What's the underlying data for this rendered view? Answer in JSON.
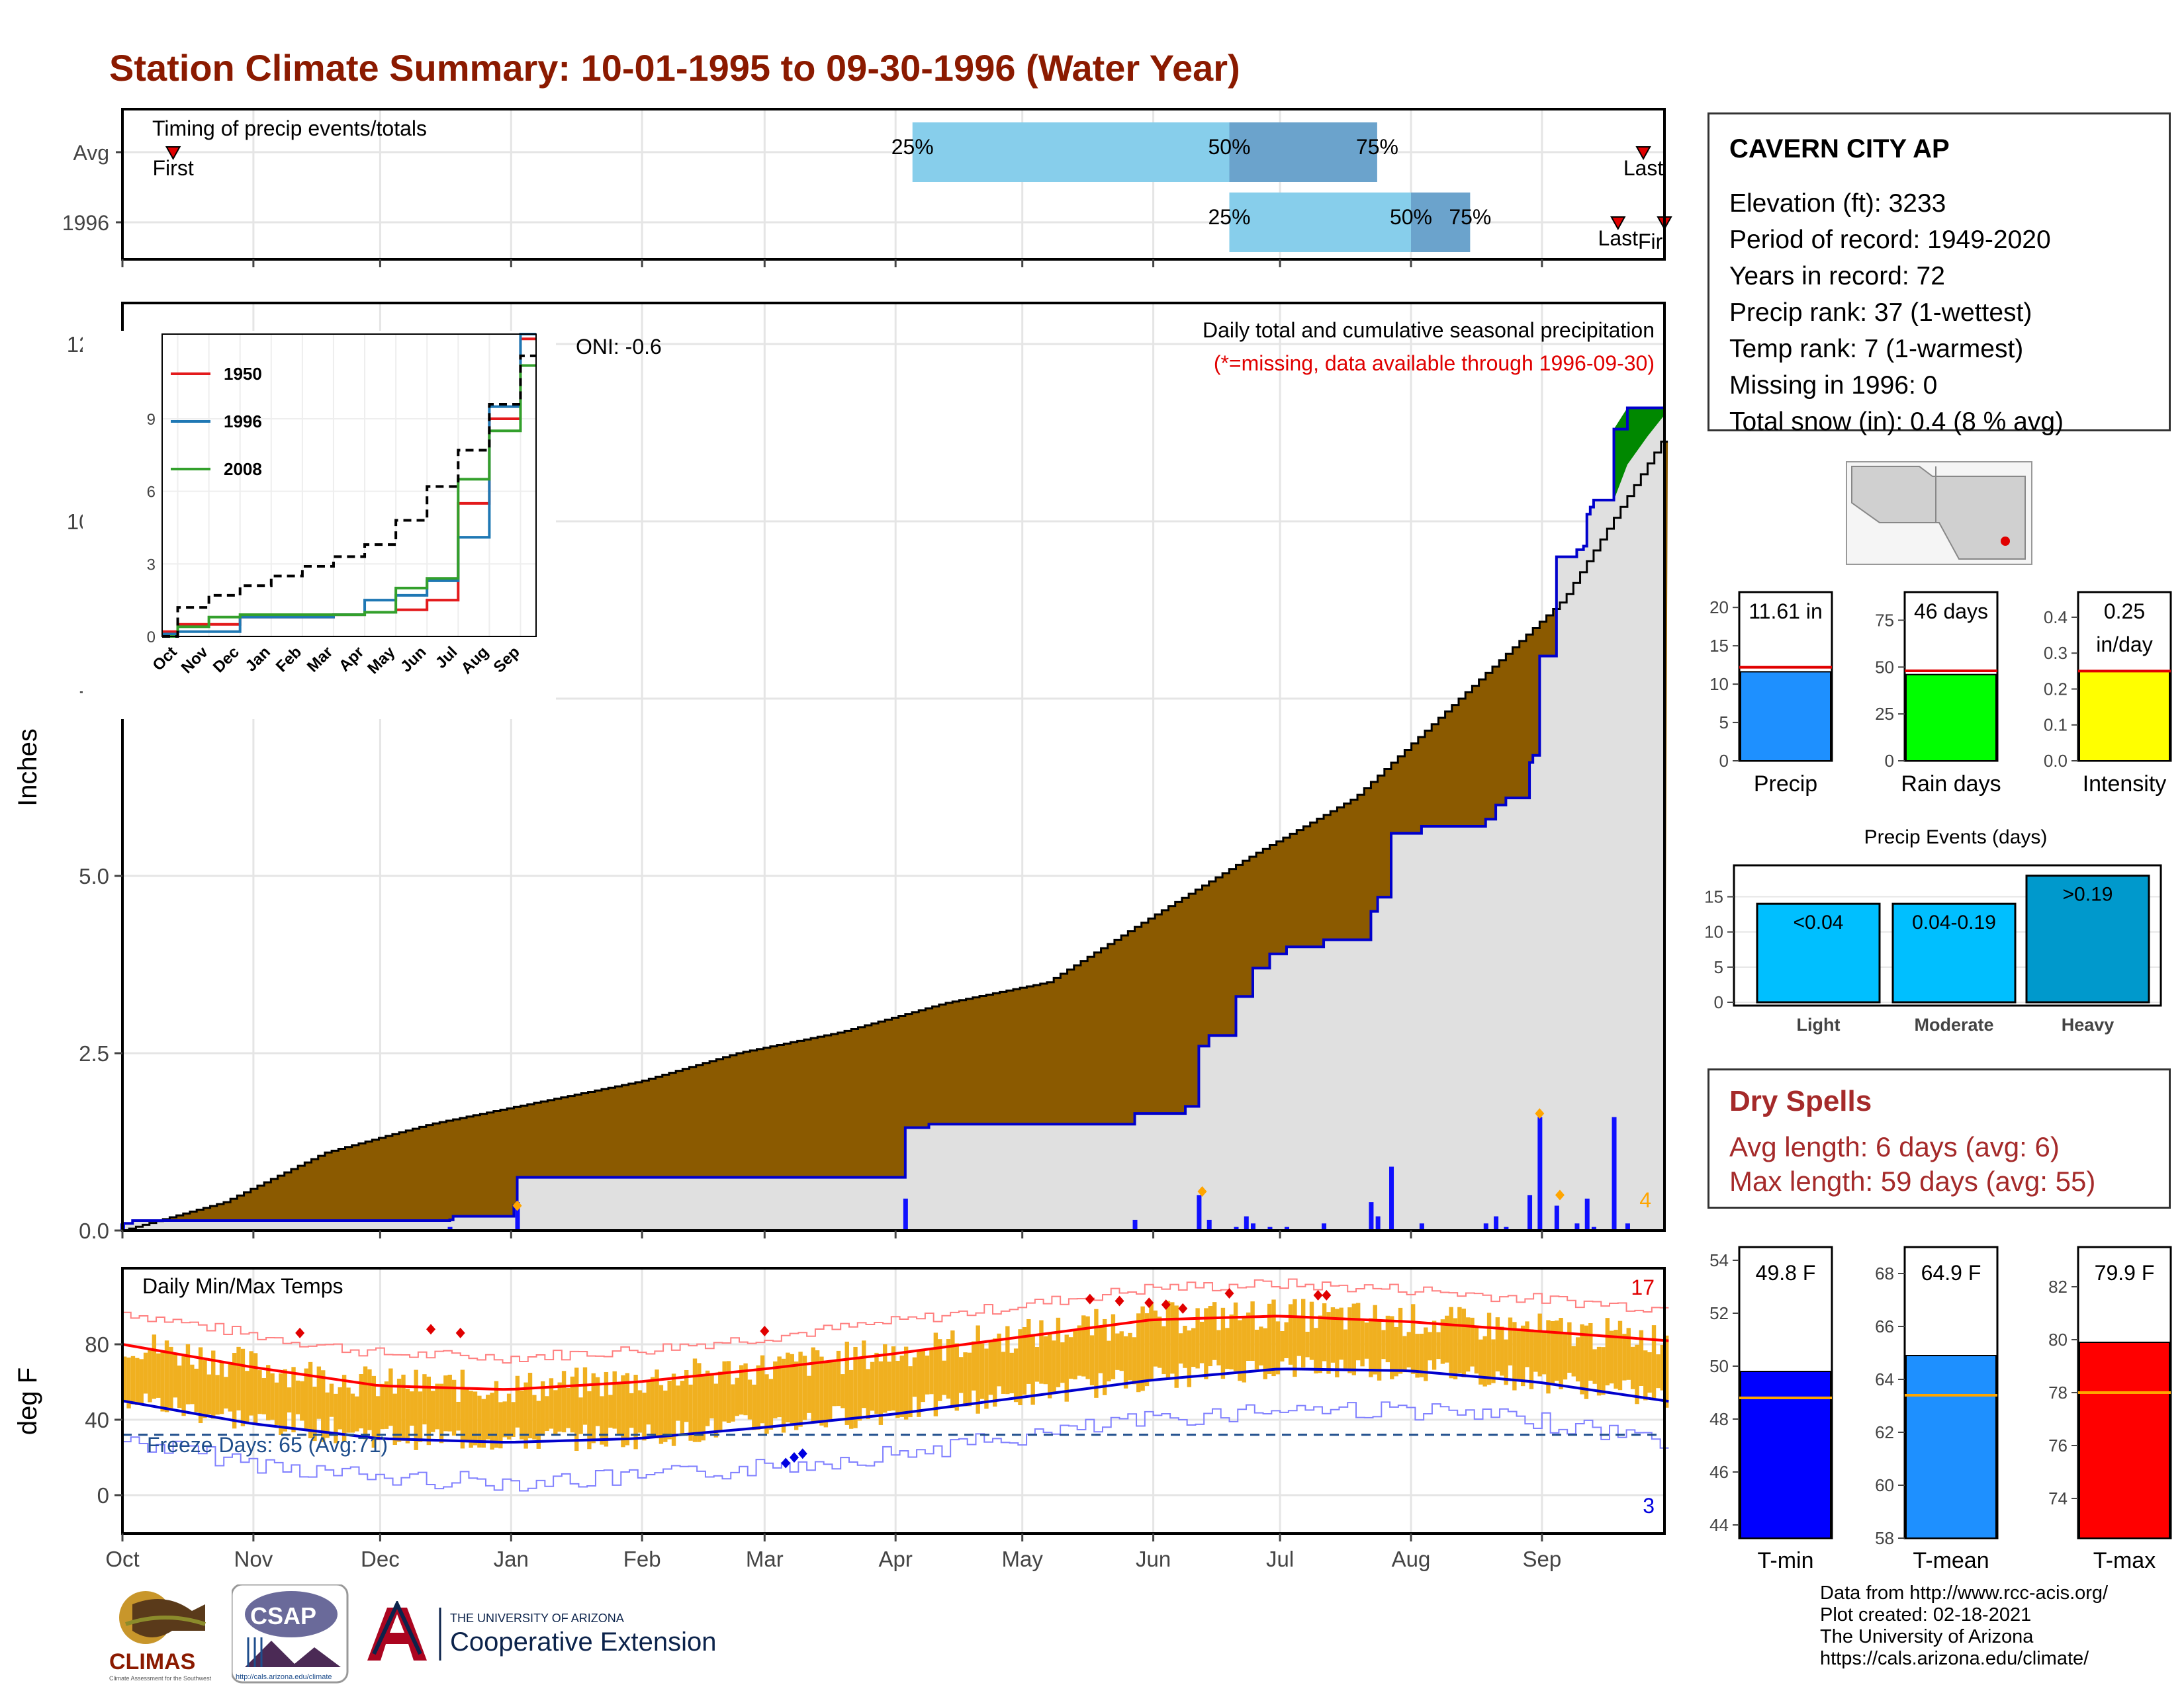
{
  "title": "Station Climate Summary: 10-01-1995 to 09-30-1996 (Water Year)",
  "colors": {
    "title": "#8B1A00",
    "cum_avg_fill": "#8B5A00",
    "cum_year_fill": "#E0E0E0",
    "cum_year_line": "#0000CC",
    "surplus": "#008800",
    "bar_light_blue": "#87CEEB",
    "bar_steel": "#6BA3CC",
    "temp_band": "#F0B020",
    "tmax_avg": "#FF0000",
    "tmin_avg": "#0000CC",
    "freeze_line": "#1F4E8C",
    "precip_bar": "#1E90FF",
    "raindays_bar": "#00FF00",
    "intensity_bar": "#FFFF00",
    "tmin_bar": "#0000FF",
    "tmean_bar": "#1E90FF",
    "tmax_bar": "#FF0000",
    "event_bar": "#00BFFF",
    "event_heavy": "#0099CC"
  },
  "station": {
    "name": "CAVERN CITY AP",
    "lines": [
      "Elevation (ft): 3233",
      "Period of record: 1949-2020",
      "Years in record: 72",
      "Precip rank: 37 (1-wettest)",
      "Temp rank: 7 (1-warmest)",
      "Missing in 1996: 0",
      "Total snow (in): 0.4 (8 % avg)"
    ]
  },
  "dry_spells": {
    "title": "Dry Spells",
    "avg": "Avg length: 6 days (avg: 6)",
    "max": "Max length: 59 days (avg: 55)"
  },
  "credits": [
    "Data from http://www.rcc-acis.org/",
    "Plot created: 02-18-2021",
    "The University of Arizona",
    "https://cals.arizona.edu/climate/"
  ],
  "logos": {
    "climas": "CLIMAS",
    "climas_sub": "Climate Assessment for the Southwest",
    "csap": "CSAP",
    "csap_url": "http://cals.arizona.edu/climate",
    "ua_small": "THE UNIVERSITY OF ARIZONA",
    "ua_big": "Cooperative Extension"
  },
  "chart_data": [
    {
      "id": "timing",
      "type": "bar",
      "title": "Timing of precip events/totals",
      "categories": [
        "Avg",
        "1996"
      ],
      "x_ticks": [
        "Oct",
        "Nov",
        "Dec",
        "Jan",
        "Feb",
        "Mar",
        "Apr",
        "May",
        "Jun",
        "Jul",
        "Aug",
        "Sep"
      ],
      "rows": [
        {
          "label": "Avg",
          "first": "Oct 13",
          "p25": "Apr 5",
          "p50": "Jun 19",
          "p75": "Jul 24",
          "last": "Sep 25"
        },
        {
          "label": "1996",
          "first": "Sep 30",
          "p25": "Jun 19",
          "p50": "Aug 1",
          "p75": "Aug 15",
          "last": "Sep 19"
        }
      ],
      "labels": {
        "first": "First",
        "last": "Last",
        "p25": "25%",
        "p50": "50%",
        "p75": "75%"
      }
    },
    {
      "id": "cumulative",
      "type": "area",
      "title": "Daily total and cumulative seasonal precipitation",
      "subtitle": "(*=missing, data available through 1996-09-30)",
      "ylabel": "Inches",
      "ylim": [
        0,
        13
      ],
      "y_ticks": [
        "0.0",
        "2.5",
        "5.0",
        "7.5",
        "10.0",
        "12.5"
      ],
      "oni": "ONI: -0.6",
      "corner_count": "4",
      "series": [
        {
          "name": "Avg cumulative",
          "points": [
            [
              0,
              0
            ],
            [
              30,
              0.4
            ],
            [
              60,
              1.1
            ],
            [
              91,
              1.5
            ],
            [
              122,
              1.8
            ],
            [
              153,
              2.1
            ],
            [
              182,
              2.5
            ],
            [
              213,
              2.8
            ],
            [
              243,
              3.2
            ],
            [
              274,
              3.5
            ],
            [
              304,
              4.4
            ],
            [
              335,
              5.3
            ],
            [
              365,
              6.1
            ],
            [
              396,
              7.5
            ],
            [
              427,
              8.9
            ],
            [
              457,
              11.2
            ]
          ]
        },
        {
          "name": "1996 cumulative",
          "steps": [
            [
              0,
              0.1
            ],
            [
              3,
              0.14
            ],
            [
              97,
              0.15
            ],
            [
              98,
              0.2
            ],
            [
              116,
              0.35
            ],
            [
              117,
              0.75
            ],
            [
              232,
              1.45
            ],
            [
              239,
              1.5
            ],
            [
              300,
              1.65
            ],
            [
              315,
              1.75
            ],
            [
              319,
              2.6
            ],
            [
              322,
              2.75
            ],
            [
              330,
              3.3
            ],
            [
              335,
              3.7
            ],
            [
              340,
              3.9
            ],
            [
              345,
              4.0
            ],
            [
              356,
              4.1
            ],
            [
              370,
              4.5
            ],
            [
              372,
              4.7
            ],
            [
              376,
              5.6
            ],
            [
              385,
              5.7
            ],
            [
              404,
              5.8
            ],
            [
              407,
              6.0
            ],
            [
              410,
              6.1
            ],
            [
              417,
              6.6
            ],
            [
              418,
              6.7
            ],
            [
              420,
              8.1
            ],
            [
              425,
              9.5
            ],
            [
              431,
              9.6
            ],
            [
              433,
              9.65
            ],
            [
              434,
              10.1
            ],
            [
              435,
              10.2
            ],
            [
              436,
              10.3
            ],
            [
              442,
              11.3
            ],
            [
              445,
              11.3
            ],
            [
              446,
              11.6
            ],
            [
              447,
              11.6
            ],
            [
              457,
              11.61
            ]
          ]
        }
      ],
      "daily_bars": [
        [
          0,
          0.1
        ],
        [
          97,
          0.05
        ],
        [
          117,
          0.4
        ],
        [
          232,
          0.45
        ],
        [
          300,
          0.15
        ],
        [
          319,
          0.5
        ],
        [
          322,
          0.15
        ],
        [
          330,
          0.05
        ],
        [
          333,
          0.2
        ],
        [
          335,
          0.1
        ],
        [
          340,
          0.05
        ],
        [
          345,
          0.05
        ],
        [
          356,
          0.1
        ],
        [
          370,
          0.4
        ],
        [
          372,
          0.2
        ],
        [
          376,
          0.9
        ],
        [
          385,
          0.1
        ],
        [
          404,
          0.1
        ],
        [
          407,
          0.2
        ],
        [
          410,
          0.05
        ],
        [
          417,
          0.5
        ],
        [
          420,
          1.6
        ],
        [
          425,
          0.35
        ],
        [
          431,
          0.1
        ],
        [
          434,
          0.45
        ],
        [
          436,
          0.05
        ],
        [
          442,
          1.6
        ],
        [
          446,
          0.1
        ]
      ],
      "record_markers": [
        [
          117,
          0.35
        ],
        [
          320,
          0.55
        ],
        [
          420,
          1.65
        ],
        [
          426,
          0.5
        ]
      ]
    },
    {
      "id": "inset",
      "type": "line",
      "x_ticks": [
        "Oct",
        "Nov",
        "Dec",
        "Jan",
        "Feb",
        "Mar",
        "Apr",
        "May",
        "Jun",
        "Jul",
        "Aug",
        "Sep"
      ],
      "y_ticks": [
        "0",
        "3",
        "6",
        "9"
      ],
      "ylim": [
        0,
        12.5
      ],
      "series": [
        {
          "name": "1950",
          "color": "#E31A1C",
          "values": [
            0.2,
            0.5,
            0.5,
            0.8,
            0.8,
            0.8,
            0.9,
            1.0,
            1.1,
            1.5,
            5.5,
            9.0,
            12.3
          ]
        },
        {
          "name": "1996",
          "color": "#1F78B4",
          "values": [
            0.1,
            0.2,
            0.2,
            0.8,
            0.8,
            0.8,
            0.9,
            1.5,
            1.7,
            2.3,
            4.1,
            9.5,
            12.5
          ]
        },
        {
          "name": "2008",
          "color": "#33A02C",
          "values": [
            0.0,
            0.4,
            0.8,
            0.9,
            0.9,
            0.9,
            0.9,
            1.0,
            2.0,
            2.4,
            6.5,
            8.5,
            11.2
          ]
        },
        {
          "name": "Avg",
          "color": "#000000",
          "values": [
            0.0,
            1.2,
            1.7,
            2.1,
            2.5,
            2.9,
            3.3,
            3.8,
            4.8,
            6.2,
            7.7,
            9.6,
            11.6
          ]
        }
      ]
    },
    {
      "id": "temps",
      "type": "line",
      "title": "Daily Min/Max Temps",
      "ylabel": "deg F",
      "ylim": [
        -20,
        110
      ],
      "y_ticks": [
        "0",
        "40",
        "80"
      ],
      "x_ticks": [
        "Oct",
        "Nov",
        "Dec",
        "Jan",
        "Feb",
        "Mar",
        "Apr",
        "May",
        "Jun",
        "Jul",
        "Aug",
        "Sep"
      ],
      "freeze_label": "Freeze Days: 65 (Avg:71)",
      "freeze_value": 32,
      "record_high_count": "17",
      "record_low_count": "3",
      "series": [
        {
          "name": "Avg max",
          "monthly": [
            80,
            68,
            58,
            56,
            60,
            67,
            75,
            84,
            93,
            95,
            92,
            87,
            82
          ]
        },
        {
          "name": "Avg min",
          "monthly": [
            50,
            38,
            30,
            28,
            30,
            36,
            43,
            52,
            61,
            67,
            66,
            60,
            50
          ]
        }
      ]
    },
    {
      "id": "summary_bars",
      "type": "bar",
      "panels": [
        {
          "label": "Precip",
          "value": 11.61,
          "text": "11.61 in",
          "avg": 12.2,
          "ymax": 22,
          "ticks": [
            0,
            5,
            10,
            15,
            20
          ]
        },
        {
          "label": "Rain days",
          "value": 46,
          "text": "46 days",
          "avg": 48,
          "ymax": 90,
          "ticks": [
            0,
            25,
            50,
            75
          ]
        },
        {
          "label": "Intensity",
          "value": 0.25,
          "text": "0.25\nin/day",
          "avg": 0.25,
          "ymax": 0.47,
          "ticks": [
            "0.0",
            "0.1",
            "0.2",
            "0.3",
            "0.4"
          ]
        }
      ]
    },
    {
      "id": "events",
      "type": "bar",
      "title": "Precip Events (days)",
      "categories": [
        "Light",
        "Moderate",
        "Heavy"
      ],
      "values": [
        14,
        14,
        18
      ],
      "bar_labels": [
        "<0.04",
        "0.04-0.19",
        ">0.19"
      ],
      "ylim": [
        0,
        19
      ],
      "y_ticks": [
        0,
        5,
        10,
        15
      ]
    },
    {
      "id": "temp_bars",
      "type": "bar",
      "panels": [
        {
          "label": "T-min",
          "value": 49.8,
          "text": "49.8 F",
          "avg": 48.8,
          "ylim": [
            43.5,
            54.5
          ],
          "ticks": [
            44,
            46,
            48,
            50,
            52,
            54
          ]
        },
        {
          "label": "T-mean",
          "value": 64.9,
          "text": "64.9 F",
          "avg": 63.4,
          "ylim": [
            58,
            69
          ],
          "ticks": [
            58,
            60,
            62,
            64,
            66,
            68
          ]
        },
        {
          "label": "T-max",
          "value": 79.9,
          "text": "79.9 F",
          "avg": 78.0,
          "ylim": [
            72.5,
            83.5
          ],
          "ticks": [
            74,
            76,
            78,
            80,
            82
          ]
        }
      ]
    }
  ]
}
